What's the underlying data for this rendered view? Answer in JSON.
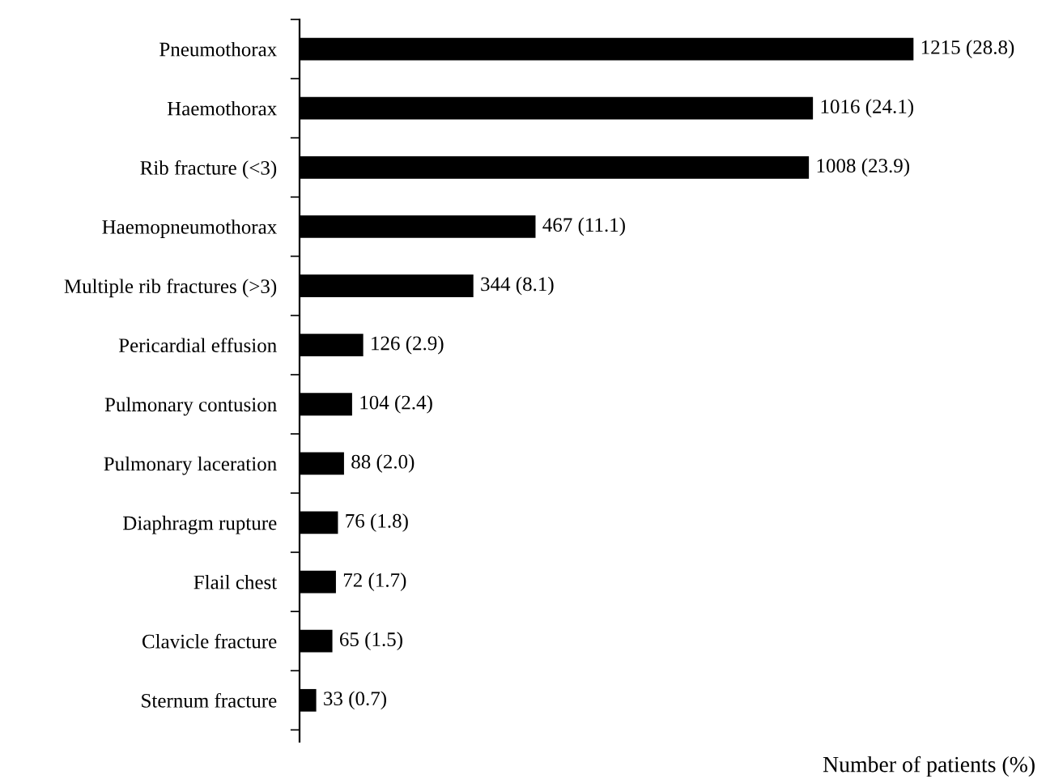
{
  "chart_data": {
    "type": "bar",
    "orientation": "horizontal",
    "xlabel": "Number of patients (%)",
    "categories": [
      "Pneumothorax",
      "Haemothorax",
      "Rib fracture (<3)",
      "Haemopneumothorax",
      "Multiple rib fractures (>3)",
      "Pericardial effusion",
      "Pulmonary contusion",
      "Pulmonary laceration",
      "Diaphragm rupture",
      "Flail chest",
      "Clavicle fracture",
      "Sternum fracture"
    ],
    "values": [
      1215,
      1016,
      1008,
      467,
      344,
      126,
      104,
      88,
      76,
      72,
      65,
      33
    ],
    "value_labels": [
      "1215 (28.8)",
      "1016 (24.1)",
      "1008 (23.9)",
      "467 (11.1)",
      "344 (8.1)",
      "126 (2.9)",
      "104 (2.4)",
      "88 (2.0)",
      "76 (1.8)",
      "72 (1.7)",
      "65 (1.5)",
      "33 (0.7)"
    ],
    "color": "#000000",
    "grid": false,
    "legend": false
  }
}
